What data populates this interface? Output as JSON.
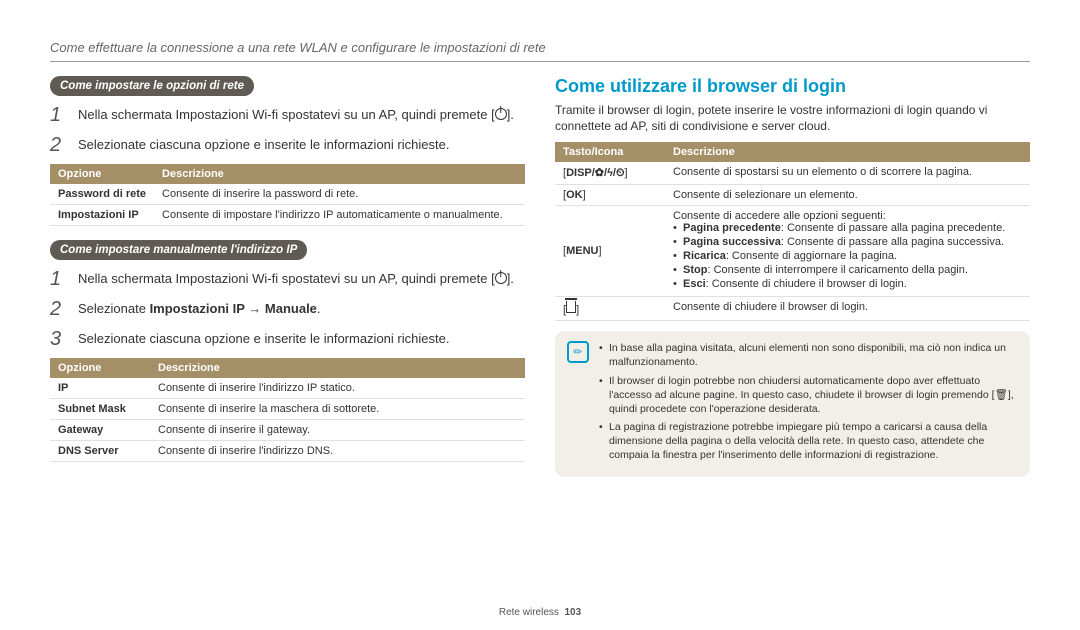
{
  "header": "Come effettuare la connessione a una rete WLAN e configurare le impostazioni di rete",
  "left": {
    "pill1": "Come impostare le opzioni di rete",
    "step1_1_a": "Nella schermata Impostazioni Wi-fi spostatevi su un AP, quindi premete [",
    "step1_1_b": "].",
    "step1_2": "Selezionate ciascuna opzione e inserite le informazioni richieste.",
    "table1": {
      "head_opt": "Opzione",
      "head_desc": "Descrizione",
      "rows": [
        {
          "opt": "Password di rete",
          "desc": "Consente di inserire la password di rete."
        },
        {
          "opt": "Impostazioni IP",
          "desc": "Consente di impostare l'indirizzo IP automaticamente o manualmente."
        }
      ]
    },
    "pill2": "Come impostare manualmente l'indirizzo IP",
    "step2_1_a": "Nella schermata Impostazioni Wi-fi spostatevi su un AP, quindi premete [",
    "step2_1_b": "].",
    "step2_2_a": "Selezionate ",
    "step2_2_b": "Impostazioni IP → Manuale",
    "step2_2_c": ".",
    "step2_3": "Selezionate ciascuna opzione e inserite le informazioni richieste.",
    "table2": {
      "head_opt": "Opzione",
      "head_desc": "Descrizione",
      "rows": [
        {
          "opt": "IP",
          "desc": "Consente di inserire l'indirizzo IP statico."
        },
        {
          "opt": "Subnet Mask",
          "desc": "Consente di inserire la maschera di sottorete."
        },
        {
          "opt": "Gateway",
          "desc": "Consente di inserire il gateway."
        },
        {
          "opt": "DNS Server",
          "desc": "Consente di inserire l'indirizzo DNS."
        }
      ]
    }
  },
  "right": {
    "title": "Come utilizzare il browser di login",
    "intro": "Tramite il browser di login, potete inserire le vostre informazioni di login quando vi connettete ad AP, siti di condivisione e server cloud.",
    "table": {
      "head_key": "Tasto/Icona",
      "head_desc": "Descrizione",
      "r1_key": "DISP/✿/ϟ/⏲",
      "r1_desc": "Consente di spostarsi su un elemento o di scorrere la pagina.",
      "r2_key": "OK",
      "r2_desc": "Consente di selezionare un elemento.",
      "r3_key": "MENU",
      "r3_intro": "Consente di accedere alle opzioni seguenti:",
      "r3_items": [
        {
          "b": "Pagina precedente",
          "t": ": Consente di passare alla pagina precedente."
        },
        {
          "b": "Pagina successiva",
          "t": ": Consente di passare alla pagina successiva."
        },
        {
          "b": "Ricarica",
          "t": ": Consente di aggiornare la pagina."
        },
        {
          "b": "Stop",
          "t": ": Consente di interrompere il caricamento della pagin."
        },
        {
          "b": "Esci",
          "t": ": Consente di chiudere il browser di login."
        }
      ],
      "r4_desc": "Consente di chiudere il browser di login."
    },
    "note": {
      "items": [
        "In base alla pagina visitata, alcuni elementi non sono disponibili, ma ciò non indica un malfunzionamento.",
        "Il browser di login potrebbe non chiudersi automaticamente dopo aver effettuato l'accesso ad alcune pagine. In questo caso, chiudete il browser di login premendo [🗑], quindi procedete con l'operazione desiderata.",
        "La pagina di registrazione potrebbe impiegare più tempo a caricarsi a causa della dimensione della pagina o della velocità della rete. In questo caso, attendete che compaia la finestra per l'inserimento delle informazioni di registrazione."
      ]
    }
  },
  "footer_a": "Rete wireless",
  "footer_b": "103"
}
